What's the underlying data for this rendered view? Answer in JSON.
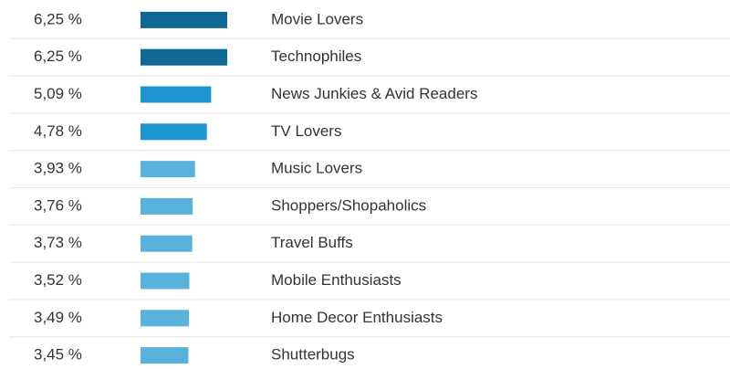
{
  "chart_data": {
    "type": "bar",
    "orientation": "horizontal",
    "categories": [
      "Movie Lovers",
      "Technophiles",
      "News Junkies & Avid Readers",
      "TV Lovers",
      "Music Lovers",
      "Shoppers/Shopaholics",
      "Travel Buffs",
      "Mobile Enthusiasts",
      "Home Decor Enthusiasts",
      "Shutterbugs"
    ],
    "values": [
      6.25,
      6.25,
      5.09,
      4.78,
      3.93,
      3.76,
      3.73,
      3.52,
      3.49,
      3.45
    ],
    "value_labels": [
      "6,25 %",
      "6,25 %",
      "5,09 %",
      "4,78 %",
      "3,93 %",
      "3,76 %",
      "3,73 %",
      "3,52 %",
      "3,49 %",
      "3,45 %"
    ],
    "colors": [
      "#0f6896",
      "#0f6896",
      "#1b95cf",
      "#1b95cf",
      "#59b2dc",
      "#59b2dc",
      "#59b2dc",
      "#59b2dc",
      "#59b2dc",
      "#59b2dc"
    ]
  }
}
